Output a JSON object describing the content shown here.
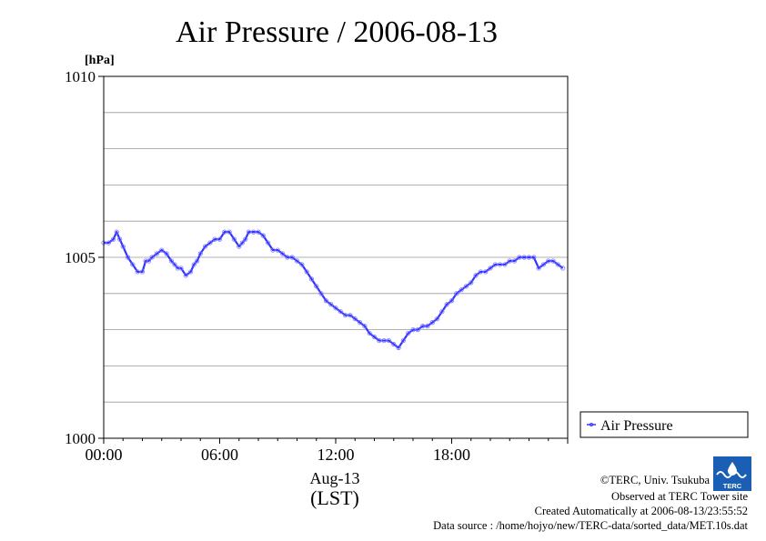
{
  "chart_data": {
    "type": "line",
    "title": "Air Pressure / 2006-08-13",
    "ylabel_unit": "[hPa]",
    "ylim": [
      1000,
      1010
    ],
    "yticks": [
      1000,
      1005,
      1010
    ],
    "yticks_labels": [
      "1000",
      "1005",
      "1010"
    ],
    "ygrid_step": 1,
    "grid": "horizontal",
    "xlim": [
      0,
      24
    ],
    "xticks": [
      0,
      6,
      12,
      18
    ],
    "xticks_labels": [
      "00:00",
      "06:00",
      "12:00",
      "18:00"
    ],
    "xlabel_date": "Aug-13",
    "xlabel_unit": "(LST)",
    "legend": {
      "position": "right",
      "entries": [
        "Air Pressure"
      ]
    },
    "series": [
      {
        "name": "Air Pressure",
        "color": "#3333ff",
        "x": [
          0.0,
          0.25,
          0.5,
          0.67,
          0.83,
          1.0,
          1.25,
          1.5,
          1.75,
          2.0,
          2.17,
          2.33,
          2.5,
          2.75,
          3.0,
          3.25,
          3.5,
          3.67,
          3.83,
          4.0,
          4.25,
          4.5,
          4.67,
          4.83,
          5.0,
          5.25,
          5.5,
          5.75,
          6.0,
          6.25,
          6.5,
          6.75,
          7.0,
          7.17,
          7.33,
          7.5,
          7.75,
          8.0,
          8.25,
          8.5,
          8.75,
          9.0,
          9.25,
          9.5,
          9.75,
          10.0,
          10.25,
          10.5,
          10.75,
          11.0,
          11.25,
          11.5,
          11.75,
          12.0,
          12.25,
          12.5,
          12.75,
          13.0,
          13.25,
          13.5,
          13.75,
          14.0,
          14.25,
          14.5,
          14.75,
          15.0,
          15.25,
          15.5,
          15.75,
          16.0,
          16.25,
          16.5,
          16.75,
          17.0,
          17.25,
          17.5,
          17.75,
          18.0,
          18.25,
          18.5,
          18.75,
          19.0,
          19.25,
          19.5,
          19.75,
          20.0,
          20.25,
          20.5,
          20.75,
          21.0,
          21.25,
          21.5,
          21.75,
          22.0,
          22.25,
          22.5,
          22.75,
          23.0,
          23.25,
          23.5,
          23.75
        ],
        "values": [
          1005.4,
          1005.4,
          1005.5,
          1005.7,
          1005.5,
          1005.3,
          1005.0,
          1004.8,
          1004.6,
          1004.6,
          1004.9,
          1004.9,
          1005.0,
          1005.1,
          1005.2,
          1005.1,
          1004.9,
          1004.8,
          1004.7,
          1004.7,
          1004.5,
          1004.6,
          1004.8,
          1004.9,
          1005.1,
          1005.3,
          1005.4,
          1005.5,
          1005.5,
          1005.7,
          1005.7,
          1005.5,
          1005.3,
          1005.4,
          1005.5,
          1005.7,
          1005.7,
          1005.7,
          1005.6,
          1005.4,
          1005.2,
          1005.2,
          1005.1,
          1005.0,
          1005.0,
          1004.9,
          1004.8,
          1004.6,
          1004.4,
          1004.2,
          1004.0,
          1003.8,
          1003.7,
          1003.6,
          1003.5,
          1003.4,
          1003.4,
          1003.3,
          1003.2,
          1003.1,
          1002.9,
          1002.8,
          1002.7,
          1002.7,
          1002.7,
          1002.6,
          1002.5,
          1002.7,
          1002.9,
          1003.0,
          1003.0,
          1003.1,
          1003.1,
          1003.2,
          1003.3,
          1003.5,
          1003.7,
          1003.8,
          1004.0,
          1004.1,
          1004.2,
          1004.3,
          1004.5,
          1004.6,
          1004.6,
          1004.7,
          1004.8,
          1004.8,
          1004.8,
          1004.9,
          1004.9,
          1005.0,
          1005.0,
          1005.0,
          1005.0,
          1004.7,
          1004.8,
          1004.9,
          1004.9,
          1004.8,
          1004.7
        ]
      }
    ]
  },
  "credits": {
    "logo_text": "TERC",
    "copyright": "©TERC, Univ. Tsukuba",
    "site": "Observed at TERC Tower site",
    "created": "Created Automatically at 2006-08-13/23:55:52",
    "source": "Data source : /home/hojyo/new/TERC-data/sorted_data/MET.10s.dat"
  }
}
